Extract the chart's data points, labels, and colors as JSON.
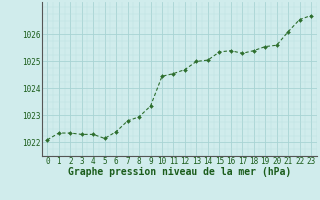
{
  "x": [
    0,
    1,
    2,
    3,
    4,
    5,
    6,
    7,
    8,
    9,
    10,
    11,
    12,
    13,
    14,
    15,
    16,
    17,
    18,
    19,
    20,
    21,
    22,
    23
  ],
  "y": [
    1022.1,
    1022.35,
    1022.35,
    1022.3,
    1022.3,
    1022.15,
    1022.4,
    1022.8,
    1022.95,
    1023.35,
    1024.45,
    1024.55,
    1024.7,
    1025.0,
    1025.05,
    1025.35,
    1025.4,
    1025.3,
    1025.4,
    1025.55,
    1025.6,
    1026.1,
    1026.55,
    1026.7
  ],
  "line_color": "#2d6e2d",
  "marker_color": "#2d6e2d",
  "bg_color": "#d0ecec",
  "grid_color_major": "#a8d4d4",
  "grid_color_minor": "#bce0e0",
  "xlabel": "Graphe pression niveau de la mer (hPa)",
  "xlabel_color": "#1a5c1a",
  "xlabel_fontsize": 7.0,
  "tick_color": "#1a5c1a",
  "tick_fontsize": 5.5,
  "ylim": [
    1021.5,
    1027.2
  ],
  "yticks": [
    1022,
    1023,
    1024,
    1025,
    1026
  ],
  "xlim": [
    -0.5,
    23.5
  ],
  "xticks": [
    0,
    1,
    2,
    3,
    4,
    5,
    6,
    7,
    8,
    9,
    10,
    11,
    12,
    13,
    14,
    15,
    16,
    17,
    18,
    19,
    20,
    21,
    22,
    23
  ]
}
